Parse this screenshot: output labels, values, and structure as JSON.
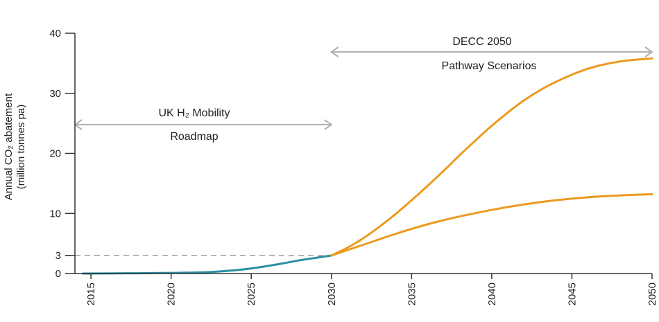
{
  "chart_data": {
    "type": "line",
    "ylabel_line1": "Annual CO₂ abatement",
    "ylabel_line2": "(million tonnes pa)",
    "xlim": [
      2014,
      2050
    ],
    "ylim": [
      0,
      40
    ],
    "x_ticks": [
      "2015",
      "2020",
      "2025",
      "2030",
      "2035",
      "2040",
      "2045",
      "2050"
    ],
    "y_ticks": [
      "0",
      "3",
      "10",
      "20",
      "30",
      "40"
    ],
    "reference_line": {
      "y": 3,
      "x_start": 2014,
      "x_end": 2030,
      "style": "dashed"
    },
    "series": [
      {
        "color": "#2a8fa3",
        "x": [
          2014.5,
          2016,
          2018,
          2020,
          2021,
          2022,
          2023,
          2024,
          2025,
          2026,
          2027,
          2028,
          2029,
          2030
        ],
        "y": [
          0,
          0.02,
          0.05,
          0.1,
          0.15,
          0.2,
          0.35,
          0.55,
          0.85,
          1.25,
          1.7,
          2.2,
          2.6,
          3.0
        ]
      },
      {
        "color": "#ec9a1f",
        "x": [
          2030,
          2031,
          2032,
          2033,
          2034,
          2035,
          2036,
          2037,
          2038,
          2039,
          2040,
          2041,
          2042,
          2043,
          2044,
          2045,
          2046,
          2047,
          2048,
          2049,
          2050
        ],
        "y": [
          3.0,
          4.3,
          5.9,
          7.8,
          9.9,
          12.2,
          14.6,
          17.1,
          19.7,
          22.2,
          24.6,
          26.8,
          28.8,
          30.5,
          31.9,
          33.1,
          34.1,
          34.8,
          35.3,
          35.6,
          35.8
        ]
      },
      {
        "color": "#ec9a1f",
        "x": [
          2030,
          2032,
          2034,
          2036,
          2038,
          2040,
          2042,
          2044,
          2046,
          2048,
          2050
        ],
        "y": [
          3.0,
          4.8,
          6.6,
          8.2,
          9.5,
          10.6,
          11.5,
          12.2,
          12.7,
          13.0,
          13.2
        ]
      }
    ],
    "annotations": [
      {
        "line1": "UK H₂ Mobility",
        "line2": "Roadmap",
        "x_start": 2014,
        "x_end": 2030
      },
      {
        "line1": "DECC 2050",
        "line2": "Pathway Scenarios",
        "x_start": 2030,
        "x_end": 2050
      }
    ],
    "colors": {
      "axis": "#333333",
      "arrow": "#b0b0b0",
      "dashed": "#aaaaaa",
      "teal": "#2a8fa3",
      "orange": "#ec9a1f"
    }
  }
}
